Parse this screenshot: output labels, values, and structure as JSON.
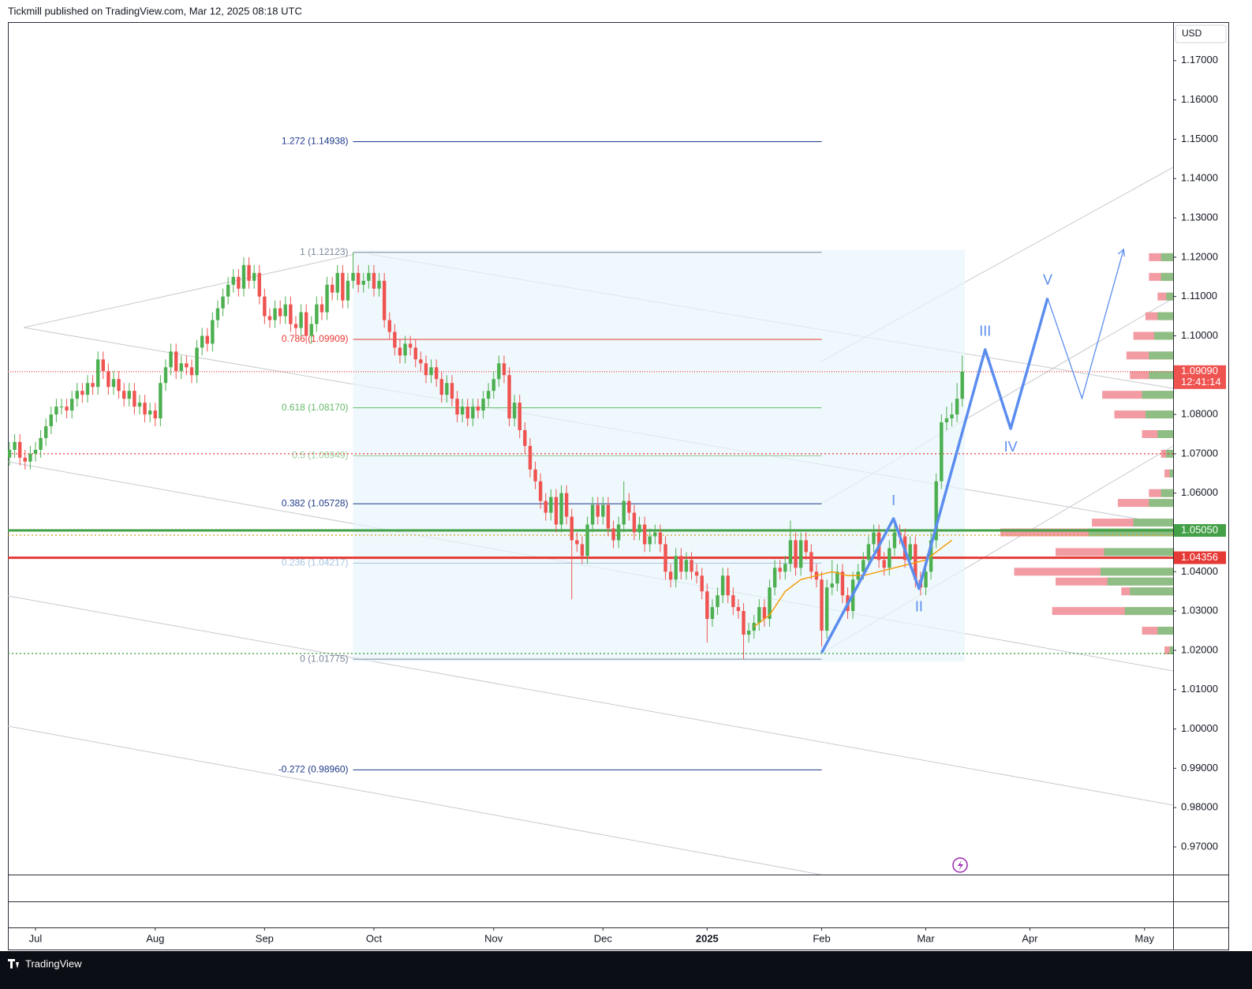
{
  "header": {
    "text": "Tickmill published on TradingView.com, Mar 12, 2025 08:18 UTC"
  },
  "footer": {
    "brand": "TradingView"
  },
  "chart_data": {
    "type": "candlestick",
    "currency": "USD",
    "xlim": [
      -0.3,
      223.5
    ],
    "ylim": [
      0.96297,
      1.1798
    ],
    "xticks": [
      {
        "value": 5,
        "label": "Jul"
      },
      {
        "value": 28,
        "label": "Aug"
      },
      {
        "value": 49,
        "label": "Sep"
      },
      {
        "value": 70,
        "label": "Oct"
      },
      {
        "value": 93,
        "label": "Nov"
      },
      {
        "value": 114,
        "label": "Dec"
      },
      {
        "value": 134,
        "label": "2025"
      },
      {
        "value": 156,
        "label": "Feb"
      },
      {
        "value": 176,
        "label": "Mar"
      },
      {
        "value": 196,
        "label": "Apr"
      },
      {
        "value": 218,
        "label": "May"
      }
    ],
    "yticks": [
      {
        "value": 0.97,
        "label": "0.97000"
      },
      {
        "value": 0.98,
        "label": "0.98000"
      },
      {
        "value": 0.99,
        "label": "0.99000"
      },
      {
        "value": 1.0,
        "label": "1.00000"
      },
      {
        "value": 1.01,
        "label": "1.01000"
      },
      {
        "value": 1.02,
        "label": "1.02000"
      },
      {
        "value": 1.03,
        "label": "1.03000"
      },
      {
        "value": 1.04,
        "label": "1.04000"
      },
      {
        "value": 1.06,
        "label": "1.06000"
      },
      {
        "value": 1.07,
        "label": "1.07000"
      },
      {
        "value": 1.08,
        "label": "1.08000"
      },
      {
        "value": 1.1,
        "label": "1.10000"
      },
      {
        "value": 1.11,
        "label": "1.11000"
      },
      {
        "value": 1.12,
        "label": "1.12000"
      },
      {
        "value": 1.13,
        "label": "1.13000"
      },
      {
        "value": 1.14,
        "label": "1.14000"
      },
      {
        "value": 1.15,
        "label": "1.15000"
      },
      {
        "value": 1.16,
        "label": "1.16000"
      },
      {
        "value": 1.17,
        "label": "1.17000"
      }
    ],
    "up_color": "#4caf50",
    "down_color": "#ef5350",
    "candles": {
      "open": [
        1.069,
        1.071,
        1.073,
        1.069,
        1.068,
        1.07,
        1.071,
        1.074,
        1.077,
        1.08,
        1.082,
        1.082,
        1.081,
        1.084,
        1.086,
        1.085,
        1.088,
        1.087,
        1.094,
        1.091,
        1.087,
        1.089,
        1.086,
        1.084,
        1.086,
        1.082,
        1.083,
        1.08,
        1.081,
        1.079,
        1.088,
        1.092,
        1.096,
        1.091,
        1.093,
        1.092,
        1.09,
        1.097,
        1.1,
        1.098,
        1.104,
        1.107,
        1.11,
        1.113,
        1.115,
        1.112,
        1.118,
        1.114,
        1.116,
        1.11,
        1.105,
        1.104,
        1.107,
        1.105,
        1.108,
        1.103,
        1.102,
        1.106,
        1.1,
        1.103,
        1.108,
        1.106,
        1.113,
        1.111,
        1.116,
        1.109,
        1.114,
        1.116,
        1.113,
        1.114,
        1.116,
        1.112,
        1.114,
        1.104,
        1.101,
        1.097,
        1.095,
        1.098,
        1.097,
        1.094,
        1.093,
        1.09,
        1.092,
        1.089,
        1.085,
        1.088,
        1.084,
        1.08,
        1.082,
        1.079,
        1.082,
        1.081,
        1.084,
        1.086,
        1.089,
        1.093,
        1.09,
        1.079,
        1.083,
        1.076,
        1.072,
        1.066,
        1.063,
        1.058,
        1.055,
        1.059,
        1.052,
        1.06,
        1.054,
        1.048,
        1.047,
        1.044,
        1.052,
        1.057,
        1.054,
        1.057,
        1.051,
        1.048,
        1.052,
        1.058,
        1.055,
        1.05,
        1.052,
        1.047,
        1.049,
        1.05,
        1.047,
        1.04,
        1.038,
        1.044,
        1.04,
        1.043,
        1.04,
        1.039,
        1.035,
        1.028,
        1.031,
        1.034,
        1.039,
        1.034,
        1.031,
        1.03,
        1.024,
        1.025,
        1.027,
        1.031,
        1.028,
        1.036,
        1.041,
        1.04,
        1.042,
        1.048,
        1.041,
        1.048,
        1.045,
        1.04,
        1.038,
        1.025,
        1.036,
        1.037,
        1.04,
        1.034,
        1.03,
        1.038,
        1.04,
        1.043,
        1.047,
        1.05,
        1.043,
        1.041,
        1.046,
        1.05,
        1.049,
        1.043,
        1.047,
        1.038,
        1.036,
        1.04,
        1.048,
        1.063,
        1.078,
        1.079,
        1.08,
        1.084
      ],
      "high": [
        1.073,
        1.075,
        1.075,
        1.071,
        1.072,
        1.073,
        1.076,
        1.079,
        1.082,
        1.084,
        1.084,
        1.084,
        1.086,
        1.088,
        1.088,
        1.09,
        1.09,
        1.096,
        1.096,
        1.093,
        1.091,
        1.091,
        1.088,
        1.088,
        1.088,
        1.085,
        1.085,
        1.083,
        1.083,
        1.09,
        1.094,
        1.098,
        1.098,
        1.095,
        1.095,
        1.094,
        1.099,
        1.102,
        1.102,
        1.106,
        1.109,
        1.112,
        1.115,
        1.117,
        1.117,
        1.12,
        1.12,
        1.118,
        1.118,
        1.112,
        1.107,
        1.109,
        1.109,
        1.11,
        1.11,
        1.105,
        1.108,
        1.108,
        1.105,
        1.11,
        1.11,
        1.115,
        1.115,
        1.118,
        1.118,
        1.116,
        1.1212,
        1.118,
        1.116,
        1.118,
        1.118,
        1.116,
        1.116,
        1.106,
        1.103,
        1.099,
        1.1,
        1.1,
        1.099,
        1.096,
        1.095,
        1.094,
        1.094,
        1.091,
        1.09,
        1.09,
        1.086,
        1.084,
        1.084,
        1.084,
        1.084,
        1.086,
        1.088,
        1.091,
        1.095,
        1.095,
        1.092,
        1.085,
        1.085,
        1.078,
        1.074,
        1.068,
        1.065,
        1.06,
        1.061,
        1.061,
        1.062,
        1.062,
        1.056,
        1.05,
        1.049,
        1.054,
        1.059,
        1.059,
        1.059,
        1.059,
        1.053,
        1.054,
        1.063,
        1.06,
        1.057,
        1.054,
        1.054,
        1.051,
        1.052,
        1.052,
        1.049,
        1.042,
        1.046,
        1.046,
        1.045,
        1.045,
        1.042,
        1.041,
        1.037,
        1.033,
        1.036,
        1.041,
        1.041,
        1.036,
        1.033,
        1.032,
        1.027,
        1.029,
        1.033,
        1.033,
        1.038,
        1.043,
        1.043,
        1.044,
        1.053,
        1.05,
        1.05,
        1.05,
        1.047,
        1.042,
        1.04,
        1.038,
        1.043,
        1.042,
        1.042,
        1.036,
        1.04,
        1.042,
        1.045,
        1.049,
        1.052,
        1.052,
        1.045,
        1.048,
        1.052,
        1.052,
        1.051,
        1.049,
        1.049,
        1.04,
        1.042,
        1.05,
        1.065,
        1.08,
        1.082,
        1.083,
        1.088,
        1.095
      ],
      "low": [
        1.067,
        1.069,
        1.067,
        1.066,
        1.066,
        1.068,
        1.069,
        1.072,
        1.075,
        1.078,
        1.08,
        1.079,
        1.079,
        1.082,
        1.083,
        1.083,
        1.085,
        1.085,
        1.089,
        1.085,
        1.085,
        1.084,
        1.082,
        1.082,
        1.08,
        1.08,
        1.078,
        1.078,
        1.077,
        1.077,
        1.086,
        1.09,
        1.089,
        1.089,
        1.09,
        1.088,
        1.088,
        1.095,
        1.096,
        1.096,
        1.102,
        1.105,
        1.108,
        1.111,
        1.11,
        1.11,
        1.112,
        1.112,
        1.108,
        1.103,
        1.102,
        1.102,
        1.103,
        1.103,
        1.101,
        1.1,
        1.1,
        1.098,
        1.098,
        1.101,
        1.104,
        1.104,
        1.109,
        1.109,
        1.107,
        1.107,
        1.112,
        1.111,
        1.111,
        1.112,
        1.11,
        1.11,
        1.102,
        1.099,
        1.095,
        1.093,
        1.093,
        1.095,
        1.092,
        1.091,
        1.088,
        1.088,
        1.087,
        1.083,
        1.083,
        1.082,
        1.078,
        1.078,
        1.077,
        1.077,
        1.079,
        1.079,
        1.082,
        1.084,
        1.087,
        1.088,
        1.077,
        1.077,
        1.074,
        1.07,
        1.064,
        1.061,
        1.056,
        1.053,
        1.053,
        1.05,
        1.05,
        1.052,
        1.033,
        1.045,
        1.042,
        1.042,
        1.05,
        1.052,
        1.052,
        1.049,
        1.046,
        1.046,
        1.05,
        1.053,
        1.048,
        1.048,
        1.045,
        1.045,
        1.047,
        1.045,
        1.038,
        1.036,
        1.036,
        1.038,
        1.038,
        1.038,
        1.037,
        1.033,
        1.022,
        1.026,
        1.029,
        1.032,
        1.032,
        1.029,
        1.028,
        1.0177,
        1.022,
        1.023,
        1.025,
        1.026,
        1.026,
        1.034,
        1.038,
        1.038,
        1.04,
        1.039,
        1.039,
        1.043,
        1.038,
        1.036,
        1.021,
        1.023,
        1.034,
        1.035,
        1.032,
        1.028,
        1.028,
        1.036,
        1.038,
        1.041,
        1.045,
        1.041,
        1.039,
        1.039,
        1.044,
        1.047,
        1.041,
        1.041,
        1.036,
        1.034,
        1.034,
        1.038,
        1.046,
        1.061,
        1.076,
        1.077,
        1.078,
        1.082
      ],
      "close": [
        1.071,
        1.073,
        1.069,
        1.068,
        1.07,
        1.071,
        1.074,
        1.077,
        1.08,
        1.082,
        1.082,
        1.081,
        1.084,
        1.086,
        1.085,
        1.088,
        1.087,
        1.094,
        1.091,
        1.087,
        1.089,
        1.086,
        1.084,
        1.086,
        1.082,
        1.083,
        1.08,
        1.081,
        1.079,
        1.088,
        1.092,
        1.096,
        1.091,
        1.093,
        1.092,
        1.09,
        1.097,
        1.1,
        1.098,
        1.104,
        1.107,
        1.11,
        1.113,
        1.115,
        1.112,
        1.118,
        1.114,
        1.116,
        1.11,
        1.105,
        1.104,
        1.107,
        1.105,
        1.108,
        1.103,
        1.102,
        1.106,
        1.1,
        1.103,
        1.108,
        1.106,
        1.113,
        1.111,
        1.116,
        1.109,
        1.114,
        1.116,
        1.113,
        1.114,
        1.116,
        1.112,
        1.114,
        1.104,
        1.101,
        1.097,
        1.095,
        1.098,
        1.097,
        1.094,
        1.093,
        1.09,
        1.092,
        1.089,
        1.085,
        1.088,
        1.084,
        1.08,
        1.082,
        1.079,
        1.082,
        1.081,
        1.084,
        1.086,
        1.089,
        1.093,
        1.09,
        1.079,
        1.083,
        1.076,
        1.072,
        1.066,
        1.063,
        1.058,
        1.055,
        1.059,
        1.052,
        1.06,
        1.054,
        1.048,
        1.047,
        1.044,
        1.052,
        1.057,
        1.054,
        1.057,
        1.051,
        1.048,
        1.052,
        1.058,
        1.055,
        1.05,
        1.052,
        1.047,
        1.049,
        1.05,
        1.047,
        1.04,
        1.038,
        1.044,
        1.04,
        1.043,
        1.04,
        1.039,
        1.035,
        1.028,
        1.031,
        1.034,
        1.039,
        1.034,
        1.031,
        1.03,
        1.024,
        1.025,
        1.027,
        1.031,
        1.028,
        1.036,
        1.041,
        1.04,
        1.042,
        1.048,
        1.041,
        1.048,
        1.045,
        1.04,
        1.038,
        1.025,
        1.036,
        1.037,
        1.04,
        1.034,
        1.03,
        1.038,
        1.04,
        1.043,
        1.047,
        1.05,
        1.043,
        1.041,
        1.046,
        1.05,
        1.049,
        1.043,
        1.047,
        1.038,
        1.036,
        1.04,
        1.048,
        1.063,
        1.078,
        1.079,
        1.08,
        1.084,
        1.0909
      ]
    },
    "ma": {
      "color": "#f59e0b",
      "x": [
        143,
        146,
        149,
        152,
        155,
        158,
        161,
        164,
        167,
        170,
        173,
        176,
        179,
        181
      ],
      "values": [
        1.026,
        1.029,
        1.035,
        1.038,
        1.039,
        1.04,
        1.039,
        1.039,
        1.04,
        1.041,
        1.042,
        1.043,
        1.046,
        1.048
      ]
    },
    "fib_levels": [
      {
        "label": "1.272 (1.14938)",
        "value": 1.14938,
        "color": "#1e3a8a"
      },
      {
        "label": "1 (1.12123)",
        "value": 1.12123,
        "color": "#7a869a"
      },
      {
        "label": "0.786 (1.09909)",
        "value": 1.09909,
        "color": "#e53935"
      },
      {
        "label": "0.618 (1.08170)",
        "value": 1.0817,
        "color": "#66bb6a"
      },
      {
        "label": "0.5 (1.06949)",
        "value": 1.06949,
        "color": "#9ccc9c"
      },
      {
        "label": "0.382 (1.05728)",
        "value": 1.05728,
        "color": "#1e3a8a"
      },
      {
        "label": "0.236 (1.04217)",
        "value": 1.04217,
        "color": "#a8c4e0"
      },
      {
        "label": "0 (1.01775)",
        "value": 1.01775,
        "color": "#7a869a"
      },
      {
        "label": "-0.272 (0.98960)",
        "value": 0.9896,
        "color": "#1e3a8a"
      }
    ],
    "levels": [
      {
        "value": 1.0505,
        "color": "#43a047",
        "style": "solid"
      },
      {
        "value": 1.04356,
        "color": "#e53935",
        "style": "solid"
      },
      {
        "value": 1.0909,
        "color": "#ef5350",
        "style": "dotted"
      },
      {
        "value": 1.07,
        "color": "#e53935",
        "style": "dashed"
      },
      {
        "value": 1.0493,
        "color": "#d4a017",
        "style": "dashed"
      },
      {
        "value": 1.0192,
        "color": "#43a047",
        "style": "dashed"
      }
    ],
    "price_tags": [
      {
        "label": "1.09090",
        "value": 1.0909,
        "color": "#ef5350",
        "countdown": "12:41:14"
      },
      {
        "label": "1.05050",
        "value": 1.0505,
        "color": "#43a047"
      },
      {
        "label": "1.04356",
        "value": 1.04356,
        "color": "#e53935"
      }
    ],
    "wave": {
      "color": "#5b8def",
      "labels": [
        "I",
        "II",
        "III",
        "IV",
        "V"
      ],
      "x": [
        156,
        169.8,
        174.7,
        187.4,
        192.3,
        199.4
      ],
      "values": [
        1.0194,
        1.0535,
        1.0357,
        1.0965,
        1.0764,
        1.1096
      ]
    },
    "projection": {
      "x": [
        199.4,
        206,
        214
      ],
      "values": [
        1.1096,
        1.0841,
        1.122
      ]
    },
    "volume_profile": {
      "prices": [
        1.12,
        1.115,
        1.11,
        1.105,
        1.1,
        1.095,
        1.09,
        1.085,
        1.08,
        1.075,
        1.07,
        1.065,
        1.06,
        1.0575,
        1.0525,
        1.05,
        1.045,
        1.04,
        1.0375,
        1.035,
        1.03,
        1.025,
        1.02
      ],
      "total": [
        14,
        14,
        9,
        16,
        23,
        27,
        25,
        41,
        34,
        18,
        7,
        5,
        14,
        32,
        47,
        100,
        68,
        92,
        68,
        30,
        70,
        18,
        5
      ],
      "buy": [
        7,
        7,
        4,
        9,
        11,
        14,
        14,
        18,
        16,
        9,
        4,
        2,
        7,
        14,
        23,
        49,
        40,
        42,
        38,
        25,
        28,
        9,
        2
      ]
    }
  }
}
